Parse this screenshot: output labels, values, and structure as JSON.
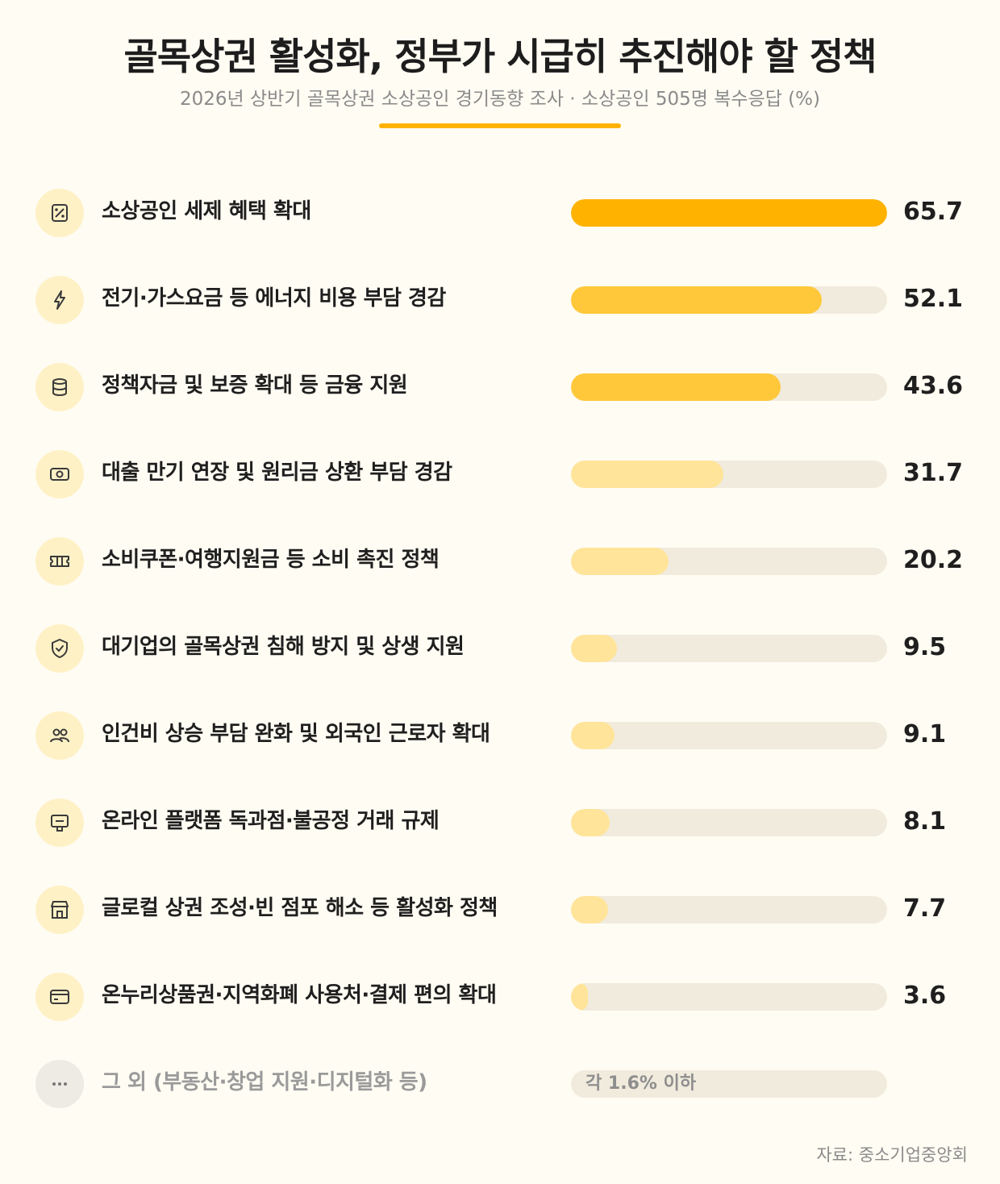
{
  "header": {
    "title": "골목상권 활성화, 정부가 시급히 추진해야 할 정책",
    "subtitle": "2026년 상반기 골목상권 소상공인 경기동향 조사 · 소상공인 505명 복수응답 (%)"
  },
  "colors": {
    "accent": "#ffb300",
    "fill_top": "#ffb300",
    "fill_high": "#ffc83a",
    "fill_low": "#ffe49a",
    "track": "#f1ebdd",
    "icon_bg": "#fff1c6",
    "icon_bg_other": "#eeebe4"
  },
  "chart_data": {
    "type": "bar",
    "orientation": "horizontal",
    "unit": "%",
    "xlim": [
      0,
      65.7
    ],
    "categories": [
      "소상공인 세제 혜택 확대",
      "전기·가스요금 등 에너지 비용 부담 경감",
      "정책자금 및 보증 확대 등 금융 지원",
      "대출 만기 연장 및 원리금 상환 부담 경감",
      "소비쿠폰·여행지원금 등 소비 촉진 정책",
      "대기업의 골목상권 침해 방지 및 상생 지원",
      "인건비 상승 부담 완화 및 외국인 근로자 확대",
      "온라인 플랫폼 독과점·불공정 거래 규제",
      "글로컬 상권 조성·빈 점포 해소 등 활성화 정책",
      "온누리상품권·지역화폐 사용처·결제 편의 확대"
    ],
    "values": [
      65.7,
      52.1,
      43.6,
      31.7,
      20.2,
      9.5,
      9.1,
      8.1,
      7.7,
      3.6
    ],
    "value_labels": [
      "65.7",
      "52.1",
      "43.6",
      "31.7",
      "20.2",
      "9.5",
      "9.1",
      "8.1",
      "7.7",
      "3.6"
    ],
    "icons": [
      "percent-tag-icon",
      "lightning-icon",
      "database-coins-icon",
      "banknote-icon",
      "ticket-icon",
      "shield-check-icon",
      "people-icon",
      "monitor-icon",
      "store-icon",
      "credit-card-icon"
    ],
    "other": {
      "label": "그 외 (부동산·창업 지원·디지털화 등)",
      "note": "각 1.6% 이하",
      "icon": "ellipsis-icon"
    }
  },
  "source": "자료: 중소기업중앙회"
}
